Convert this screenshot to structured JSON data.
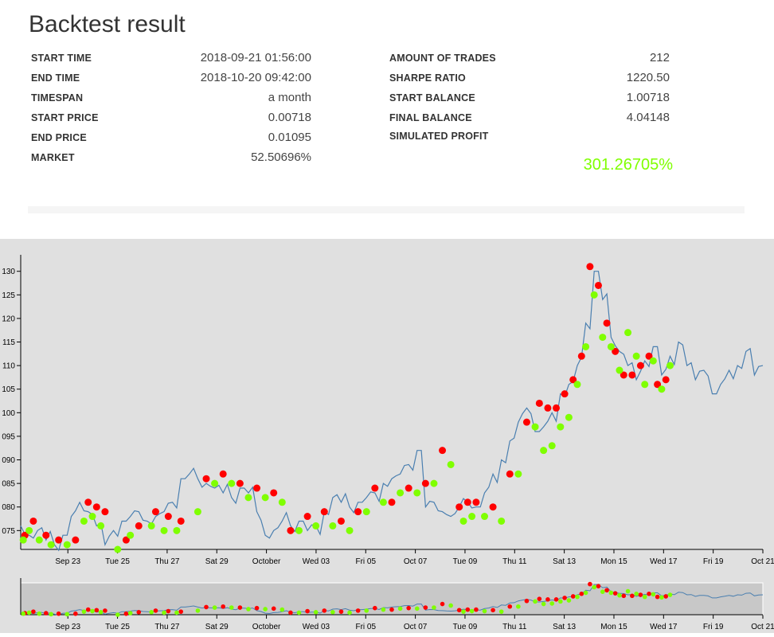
{
  "page": {
    "title": "Backtest result"
  },
  "stats_left": [
    {
      "label": "START TIME",
      "value": "2018-09-21 01:56:00"
    },
    {
      "label": "END TIME",
      "value": "2018-10-20 09:42:00"
    },
    {
      "label": "TIMESPAN",
      "value": "a month"
    },
    {
      "label": "START PRICE",
      "value": "0.00718"
    },
    {
      "label": "END PRICE",
      "value": "0.01095"
    },
    {
      "label": "MARKET",
      "value": "52.50696%"
    }
  ],
  "stats_right": [
    {
      "label": "AMOUNT OF TRADES",
      "value": "212"
    },
    {
      "label": "SHARPE RATIO",
      "value": "1220.50"
    },
    {
      "label": "START BALANCE",
      "value": "1.00718"
    },
    {
      "label": "FINAL BALANCE",
      "value": "4.04148"
    },
    {
      "label": "SIMULATED PROFIT",
      "value": ""
    }
  ],
  "simulated_profit": "301.26705%",
  "colors": {
    "price_line": "#4a7fb0",
    "buy_marker": "#7fff00",
    "sell_marker": "#ff0000",
    "profit_text": "#7fff00",
    "chart_background": "#e0e0e0"
  },
  "chart_data": {
    "type": "line",
    "series": [
      {
        "values": [
          0.0076,
          0.0074,
          0.0075,
          0.0073,
          0.0072,
          0.0074,
          0.0078,
          0.0081,
          0.0079,
          0.0076,
          0.0072,
          0.0075,
          0.0077,
          0.0078,
          0.0079,
          0.0077,
          0.0078,
          0.0079,
          0.0081,
          0.0086,
          0.0087,
          0.0086,
          0.0085,
          0.0084,
          0.0083,
          0.0082,
          0.0084,
          0.0083,
          0.0079,
          0.0074,
          0.0075,
          0.0077,
          0.0076,
          0.0077,
          0.0075,
          0.0076,
          0.0079,
          0.0082,
          0.0081,
          0.008,
          0.0081,
          0.0082,
          0.0083,
          0.0085,
          0.0086,
          0.0087,
          0.0089,
          0.0092,
          0.008,
          0.0081,
          0.0079,
          0.0078,
          0.008,
          0.0081,
          0.008,
          0.0083,
          0.0087,
          0.009,
          0.0094,
          0.0098,
          0.0101,
          0.0096,
          0.0097,
          0.01,
          0.0104,
          0.0106,
          0.011,
          0.0119,
          0.013,
          0.0124,
          0.0116,
          0.0113,
          0.011,
          0.0107,
          0.0111,
          0.0114,
          0.0108,
          0.0112,
          0.0115,
          0.011,
          0.0107,
          0.0109,
          0.0104,
          0.0106,
          0.0109,
          0.011,
          0.0113,
          0.0108,
          0.011
        ]
      }
    ],
    "x_tick_labels": [
      "Sep 23",
      "Tue 25",
      "Thu 27",
      "Sat 29",
      "October",
      "Wed 03",
      "Fri 05",
      "Oct 07",
      "Tue 09",
      "Thu 11",
      "Sat 13",
      "Mon 15",
      "Wed 17",
      "Fri 19",
      "Oct 21"
    ],
    "y_tick_labels": [
      "075",
      "080",
      "085",
      "090",
      "095",
      "100",
      "105",
      "110",
      "115",
      "120",
      "125",
      "130"
    ],
    "markers": {
      "buy": [
        [
          0.3,
          0.0073
        ],
        [
          1,
          0.0075
        ],
        [
          2.2,
          0.0073
        ],
        [
          3.6,
          0.0072
        ],
        [
          5.5,
          0.0072
        ],
        [
          7.5,
          0.0077
        ],
        [
          8.5,
          0.0078
        ],
        [
          9.5,
          0.0076
        ],
        [
          11.5,
          0.0071
        ],
        [
          13,
          0.0074
        ],
        [
          15.5,
          0.0076
        ],
        [
          17,
          0.0075
        ],
        [
          18.5,
          0.0075
        ],
        [
          21,
          0.0079
        ],
        [
          23,
          0.0085
        ],
        [
          25,
          0.0085
        ],
        [
          27,
          0.0082
        ],
        [
          29,
          0.0082
        ],
        [
          31,
          0.0081
        ],
        [
          33,
          0.0075
        ],
        [
          35,
          0.0076
        ],
        [
          37,
          0.0076
        ],
        [
          39,
          0.0075
        ],
        [
          41,
          0.0079
        ],
        [
          43,
          0.0081
        ],
        [
          45,
          0.0083
        ],
        [
          47,
          0.0083
        ],
        [
          49,
          0.0085
        ],
        [
          51,
          0.0089
        ],
        [
          52.5,
          0.0077
        ],
        [
          53.5,
          0.0078
        ],
        [
          55,
          0.0078
        ],
        [
          57,
          0.0077
        ],
        [
          59,
          0.0087
        ],
        [
          61,
          0.0097
        ],
        [
          62,
          0.0092
        ],
        [
          63,
          0.0093
        ],
        [
          64,
          0.0097
        ],
        [
          65,
          0.0099
        ],
        [
          66,
          0.0106
        ],
        [
          67,
          0.0114
        ],
        [
          68,
          0.0125
        ],
        [
          69,
          0.0116
        ],
        [
          70,
          0.0114
        ],
        [
          71,
          0.0109
        ],
        [
          72,
          0.0117
        ],
        [
          73,
          0.0112
        ],
        [
          74,
          0.0106
        ],
        [
          75,
          0.0111
        ],
        [
          76,
          0.0105
        ],
        [
          77,
          0.011
        ]
      ],
      "sell": [
        [
          0.5,
          0.0074
        ],
        [
          1.5,
          0.0077
        ],
        [
          3,
          0.0074
        ],
        [
          4.5,
          0.0073
        ],
        [
          6.5,
          0.0073
        ],
        [
          8,
          0.0081
        ],
        [
          9,
          0.008
        ],
        [
          10,
          0.0079
        ],
        [
          12.5,
          0.0073
        ],
        [
          14,
          0.0076
        ],
        [
          16,
          0.0079
        ],
        [
          17.5,
          0.0078
        ],
        [
          19,
          0.0077
        ],
        [
          22,
          0.0086
        ],
        [
          24,
          0.0087
        ],
        [
          26,
          0.0085
        ],
        [
          28,
          0.0084
        ],
        [
          30,
          0.0083
        ],
        [
          32,
          0.0075
        ],
        [
          34,
          0.0078
        ],
        [
          36,
          0.0079
        ],
        [
          38,
          0.0077
        ],
        [
          40,
          0.0079
        ],
        [
          42,
          0.0084
        ],
        [
          44,
          0.0081
        ],
        [
          46,
          0.0084
        ],
        [
          48,
          0.0085
        ],
        [
          50,
          0.0092
        ],
        [
          52,
          0.008
        ],
        [
          53,
          0.0081
        ],
        [
          54,
          0.0081
        ],
        [
          56,
          0.008
        ],
        [
          58,
          0.0087
        ],
        [
          60,
          0.0098
        ],
        [
          61.5,
          0.0102
        ],
        [
          62.5,
          0.0101
        ],
        [
          63.5,
          0.0101
        ],
        [
          64.5,
          0.0104
        ],
        [
          65.5,
          0.0107
        ],
        [
          66.5,
          0.0112
        ],
        [
          67.5,
          0.0131
        ],
        [
          68.5,
          0.0127
        ],
        [
          69.5,
          0.0119
        ],
        [
          70.5,
          0.0113
        ],
        [
          71.5,
          0.0108
        ],
        [
          72.5,
          0.0108
        ],
        [
          73.5,
          0.011
        ],
        [
          74.5,
          0.0112
        ],
        [
          75.5,
          0.0106
        ],
        [
          76.5,
          0.0107
        ]
      ]
    }
  }
}
